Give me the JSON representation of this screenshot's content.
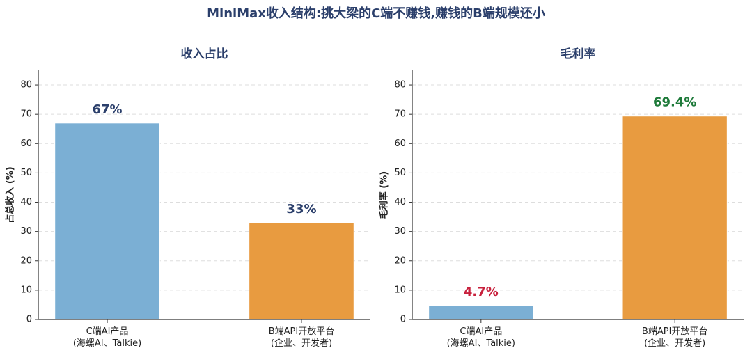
{
  "title": "MiniMax收入结构:挑大梁的C端不赚钱,赚钱的B端规模还小",
  "chart_data": [
    {
      "type": "bar",
      "title": "收入占比",
      "y_label": "占总收入 (%)",
      "categories": [
        "C端AI产品\n(海螺AI、Talkie)",
        "B端API开放平台\n(企业、开发者)"
      ],
      "values": [
        67,
        33
      ],
      "value_labels": [
        "67%",
        "33%"
      ],
      "colors": [
        "#7bafd4",
        "#e89b40"
      ],
      "label_colors": [
        "#2b3f6b",
        "#2b3f6b"
      ],
      "ylim": [
        0,
        85
      ],
      "yticks": [
        0,
        10,
        20,
        30,
        40,
        50,
        60,
        70,
        80
      ],
      "grid": true
    },
    {
      "type": "bar",
      "title": "毛利率",
      "y_label": "毛利率 (%)",
      "categories": [
        "C端AI产品\n(海螺AI、Talkie)",
        "B端API开放平台\n(企业、开发者)"
      ],
      "values": [
        4.7,
        69.4
      ],
      "value_labels": [
        "4.7%",
        "69.4%"
      ],
      "colors": [
        "#7bafd4",
        "#e89b40"
      ],
      "label_colors": [
        "#c8203c",
        "#1e7a3a"
      ],
      "ylim": [
        0,
        85
      ],
      "yticks": [
        0,
        10,
        20,
        30,
        40,
        50,
        60,
        70,
        80
      ],
      "grid": true
    }
  ]
}
